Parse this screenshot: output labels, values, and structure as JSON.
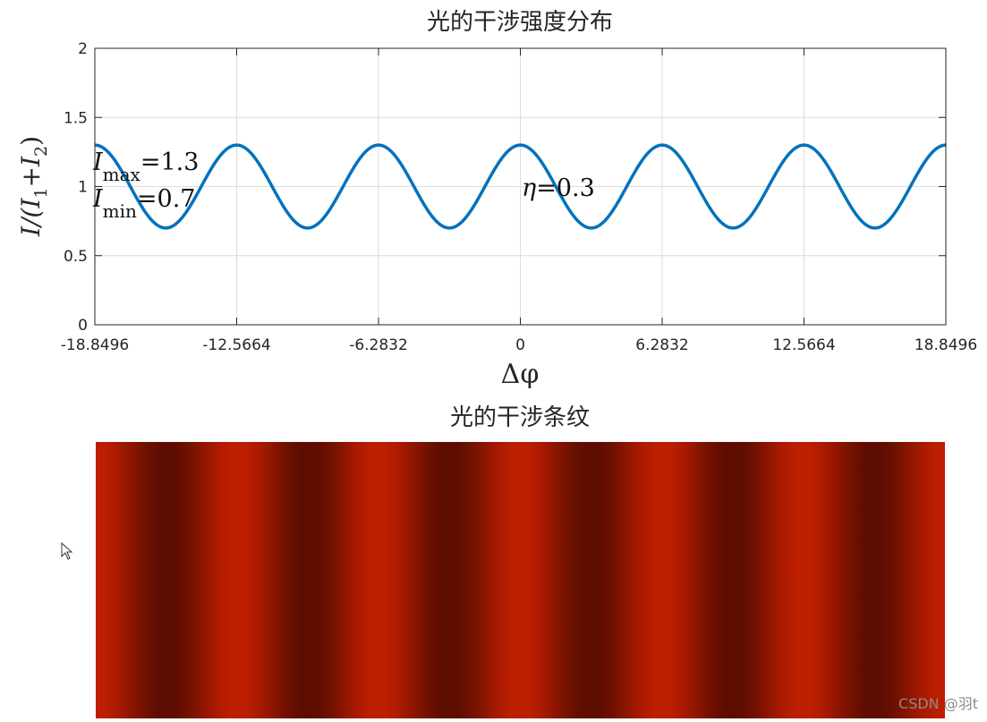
{
  "chart_data": [
    {
      "type": "line",
      "title": "光的干涉强度分布",
      "xlabel": "Δφ",
      "ylabel": "I/(I1+I2)",
      "ylabel_parts": {
        "main": "I/(I",
        "sub1": "1",
        "plus": "+I",
        "sub2": "2",
        "close": ")"
      },
      "xlim": [
        -18.8496,
        18.8496
      ],
      "ylim": [
        0,
        2
      ],
      "xticks": [
        -18.8496,
        -12.5664,
        -6.2832,
        0,
        6.2832,
        12.5664,
        18.8496
      ],
      "xtick_labels": [
        "-18.8496",
        "-12.5664",
        "-6.2832",
        "0",
        "6.2832",
        "12.5664",
        "18.8496"
      ],
      "yticks": [
        0,
        0.5,
        1,
        1.5,
        2
      ],
      "ytick_labels": [
        "0",
        "0.5",
        "1",
        "1.5",
        "2"
      ],
      "grid": true,
      "line_color": "#0072BD",
      "series": [
        {
          "function": "1 + 0.3*cos(x)",
          "amplitude": 0.3,
          "offset": 1,
          "x_range": [
            -18.8496,
            18.8496
          ]
        }
      ],
      "annotations": {
        "imax": {
          "symbol": "I",
          "sub": "max",
          "value": "=1.3"
        },
        "imin": {
          "symbol": "I",
          "sub": "min",
          "value": "=0.7"
        },
        "eta": {
          "symbol": "η",
          "value": "=0.3"
        }
      }
    },
    {
      "type": "heatmap",
      "title": "光的干涉条纹",
      "x_range": [
        -18.8496,
        18.8496
      ],
      "intensity": "1 + 0.3*cos(x)",
      "bright_color": "#BE1E00",
      "dark_color": "#5C0D00"
    }
  ],
  "watermark": "CSDN @羽t"
}
